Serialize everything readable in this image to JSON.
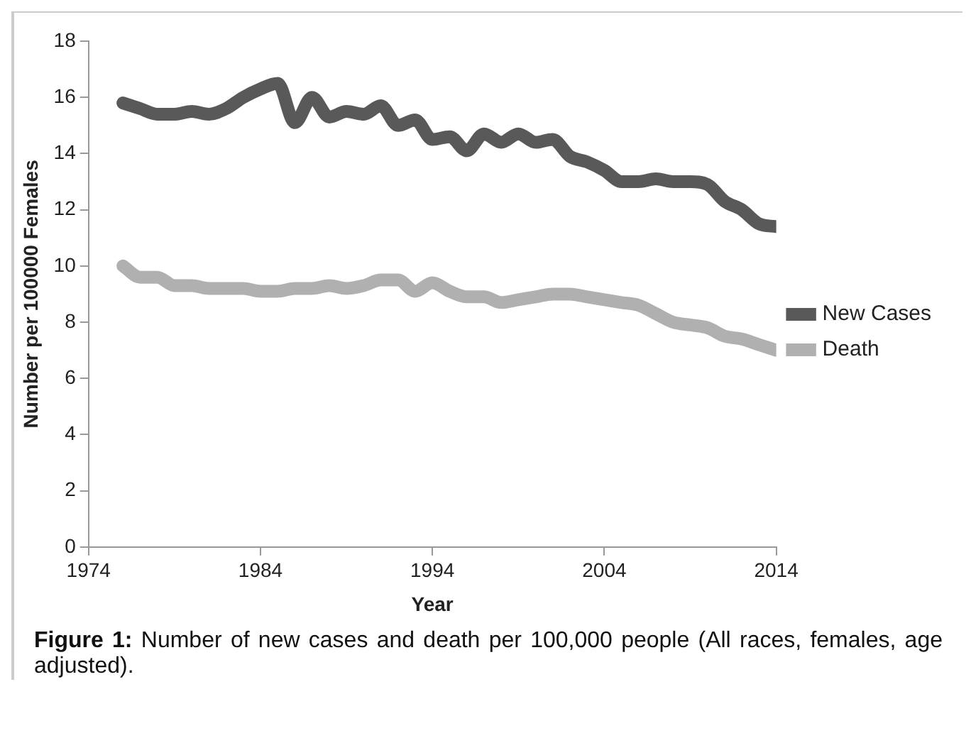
{
  "chart_data": {
    "type": "line",
    "xlabel": "Year",
    "ylabel": "Number per 100000 Females",
    "annotations": [
      "Figure 1: Number of new cases and death per 100,000 people (All races, females, age adjusted)."
    ],
    "x": [
      1976,
      1977,
      1978,
      1979,
      1980,
      1981,
      1982,
      1983,
      1984,
      1985,
      1986,
      1987,
      1988,
      1989,
      1990,
      1991,
      1992,
      1993,
      1994,
      1995,
      1996,
      1997,
      1998,
      1999,
      2000,
      2001,
      2002,
      2003,
      2004,
      2005,
      2006,
      2007,
      2008,
      2009,
      2010,
      2011,
      2012,
      2013,
      2014
    ],
    "series": [
      {
        "name": "New Cases",
        "color": "#595959",
        "values": [
          15.8,
          15.6,
          15.4,
          15.4,
          15.5,
          15.4,
          15.6,
          16.0,
          16.3,
          16.5,
          15.1,
          16.0,
          15.3,
          15.5,
          15.4,
          15.7,
          15.0,
          15.2,
          14.5,
          14.6,
          14.1,
          14.7,
          14.4,
          14.7,
          14.4,
          14.5,
          13.9,
          13.7,
          13.4,
          13.0,
          13.0,
          13.1,
          13.0,
          13.0,
          12.9,
          12.3,
          12.0,
          11.5,
          11.4
        ]
      },
      {
        "name": "Death",
        "color": "#b0b0b0",
        "values": [
          10.0,
          9.6,
          9.6,
          9.3,
          9.3,
          9.2,
          9.2,
          9.2,
          9.1,
          9.1,
          9.2,
          9.2,
          9.3,
          9.2,
          9.3,
          9.5,
          9.5,
          9.1,
          9.4,
          9.1,
          8.9,
          8.9,
          8.7,
          8.8,
          8.9,
          9.0,
          9.0,
          8.9,
          8.8,
          8.7,
          8.6,
          8.3,
          8.0,
          7.9,
          7.8,
          7.5,
          7.4,
          7.2,
          7.0
        ]
      }
    ],
    "xlim": [
      1974,
      2014
    ],
    "xticks": [
      1974,
      1984,
      1994,
      2004,
      2014
    ],
    "ylim": [
      0,
      18
    ],
    "yticks": [
      0,
      2,
      4,
      6,
      8,
      10,
      12,
      14,
      16,
      18
    ],
    "grid": false,
    "legend": "right",
    "marker": "none",
    "line_style": "solid"
  }
}
